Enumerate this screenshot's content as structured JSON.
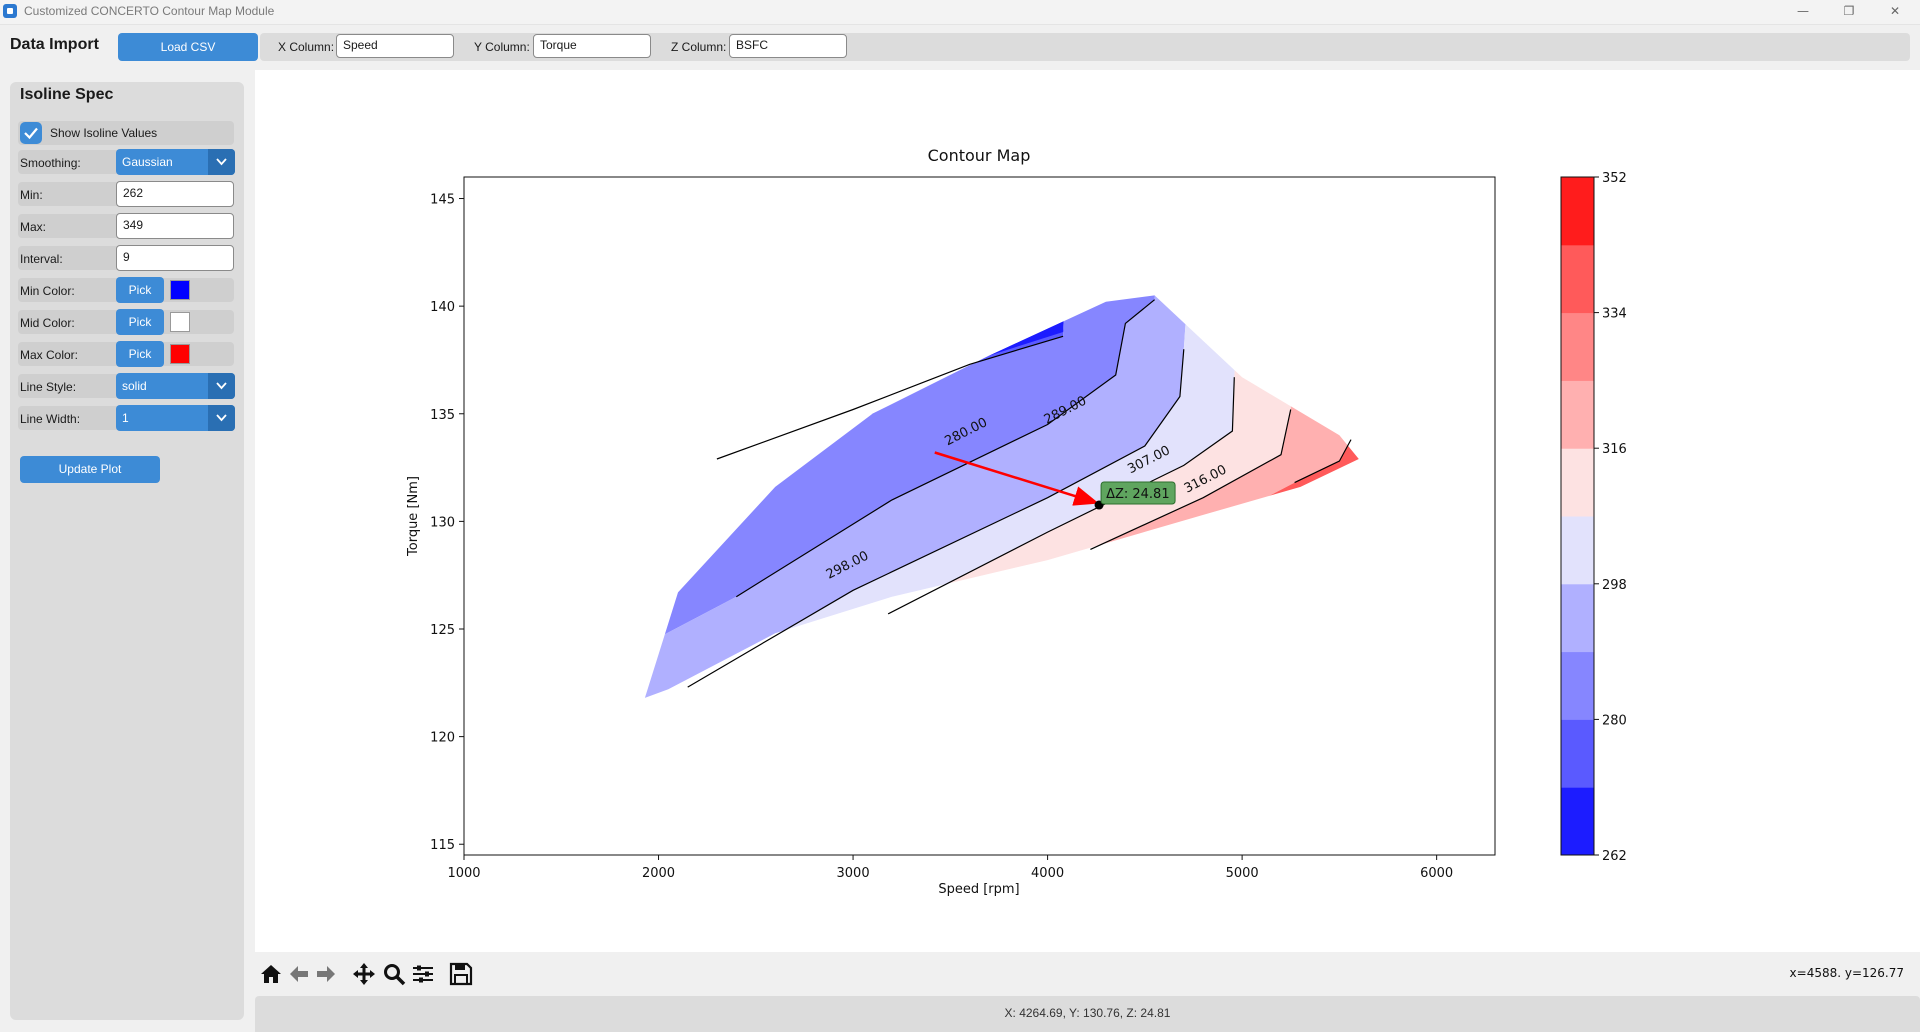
{
  "window": {
    "title": "Customized CONCERTO Contour Map Module",
    "minimize": "—",
    "restore": "❐",
    "close": "✕"
  },
  "toolbar": {
    "title": "Data Import",
    "load_label": "Load CSV",
    "x_label": "X Column:",
    "x_value": "Speed",
    "y_label": "Y Column:",
    "y_value": "Torque",
    "z_label": "Z Column:",
    "z_value": "BSFC"
  },
  "panel": {
    "title": "Isoline Spec",
    "show_values_label": "Show Isoline Values",
    "show_values_checked": true,
    "smoothing_label": "Smoothing:",
    "smoothing_value": "Gaussian",
    "min_label": "Min:",
    "min_value": "262",
    "max_label": "Max:",
    "max_value": "349",
    "interval_label": "Interval:",
    "interval_value": "9",
    "min_color_label": "Min Color:",
    "mid_color_label": "Mid Color:",
    "max_color_label": "Max Color:",
    "pick_label": "Pick",
    "min_color": "#0000ff",
    "mid_color": "#ffffff",
    "max_color": "#ff0000",
    "line_style_label": "Line Style:",
    "line_style_value": "solid",
    "line_width_label": "Line Width:",
    "line_width_value": "1",
    "update_label": "Update Plot"
  },
  "chart_data": {
    "type": "contour",
    "title": "Contour Map",
    "xlabel": "Speed [rpm]",
    "ylabel": "Torque [Nm]",
    "xlim": [
      1000,
      6300
    ],
    "ylim": [
      114.5,
      146
    ],
    "x_ticks": [
      1000,
      2000,
      3000,
      4000,
      5000,
      6000
    ],
    "y_ticks": [
      115,
      120,
      125,
      130,
      135,
      140,
      145
    ],
    "region_polygon": [
      [
        1930,
        121.8
      ],
      [
        2050,
        122.2
      ],
      [
        2600,
        124.8
      ],
      [
        3200,
        126.5
      ],
      [
        4000,
        128.2
      ],
      [
        4800,
        130.3
      ],
      [
        5300,
        131.6
      ],
      [
        5600,
        132.9
      ],
      [
        5500,
        134.0
      ],
      [
        5000,
        136.7
      ],
      [
        4550,
        140.5
      ],
      [
        4300,
        140.2
      ],
      [
        3700,
        137.7
      ],
      [
        3100,
        135.0
      ],
      [
        2600,
        131.6
      ],
      [
        2100,
        126.7
      ],
      [
        1930,
        121.8
      ]
    ],
    "levels": [
      262,
      271,
      280,
      289,
      298,
      307,
      316,
      325,
      334,
      343,
      352
    ],
    "level_colors": [
      "#1c1cff",
      "#5a5aff",
      "#8686ff",
      "#b0b0ff",
      "#e2e2fc",
      "#fde2e2",
      "#ffb0b0",
      "#ff8686",
      "#ff5a5a",
      "#ff1c1c"
    ],
    "isolines": [
      {
        "label": "280.00",
        "points": [
          [
            2300,
            132.9
          ],
          [
            3000,
            135.2
          ],
          [
            3600,
            137.3
          ],
          [
            4080,
            138.6
          ]
        ],
        "label_at": [
          3590,
          134.0
        ]
      },
      {
        "label": "289.00",
        "points": [
          [
            2400,
            126.5
          ],
          [
            3200,
            131.0
          ],
          [
            4000,
            134.5
          ],
          [
            4350,
            136.8
          ],
          [
            4400,
            139.2
          ],
          [
            4550,
            140.3
          ]
        ],
        "label_at": [
          4100,
          135.0
        ]
      },
      {
        "label": "298.00",
        "points": [
          [
            2150,
            122.3
          ],
          [
            3000,
            126.8
          ],
          [
            4000,
            131.1
          ],
          [
            4500,
            133.5
          ],
          [
            4680,
            135.8
          ],
          [
            4700,
            138.0
          ]
        ],
        "label_at": [
          2980,
          127.8
        ]
      },
      {
        "label": "307.00",
        "points": [
          [
            3180,
            125.7
          ],
          [
            4000,
            129.5
          ],
          [
            4700,
            132.6
          ],
          [
            4950,
            134.2
          ],
          [
            4960,
            136.7
          ]
        ],
        "label_at": [
          4530,
          132.7
        ]
      },
      {
        "label": "316.00",
        "points": [
          [
            4220,
            128.7
          ],
          [
            4800,
            131.1
          ],
          [
            5200,
            133.1
          ],
          [
            5250,
            135.2
          ]
        ],
        "label_at": [
          4820,
          131.8
        ]
      },
      {
        "label": "",
        "points": [
          [
            5270,
            131.8
          ],
          [
            5500,
            132.8
          ],
          [
            5560,
            133.8
          ]
        ],
        "label_at": null
      }
    ],
    "colorbar_ticks": [
      262,
      280,
      298,
      316,
      334,
      352
    ],
    "delta_arrow": {
      "from": [
        3420,
        133.2
      ],
      "to": [
        4240,
        130.9
      ]
    },
    "selected_point": [
      4264.69,
      130.76
    ],
    "delta_label": "ΔZ: 24.81"
  },
  "nav": {
    "coords": "x=4588. y=126.77",
    "status": "X: 4264.69, Y: 130.76, Z: 24.81"
  }
}
